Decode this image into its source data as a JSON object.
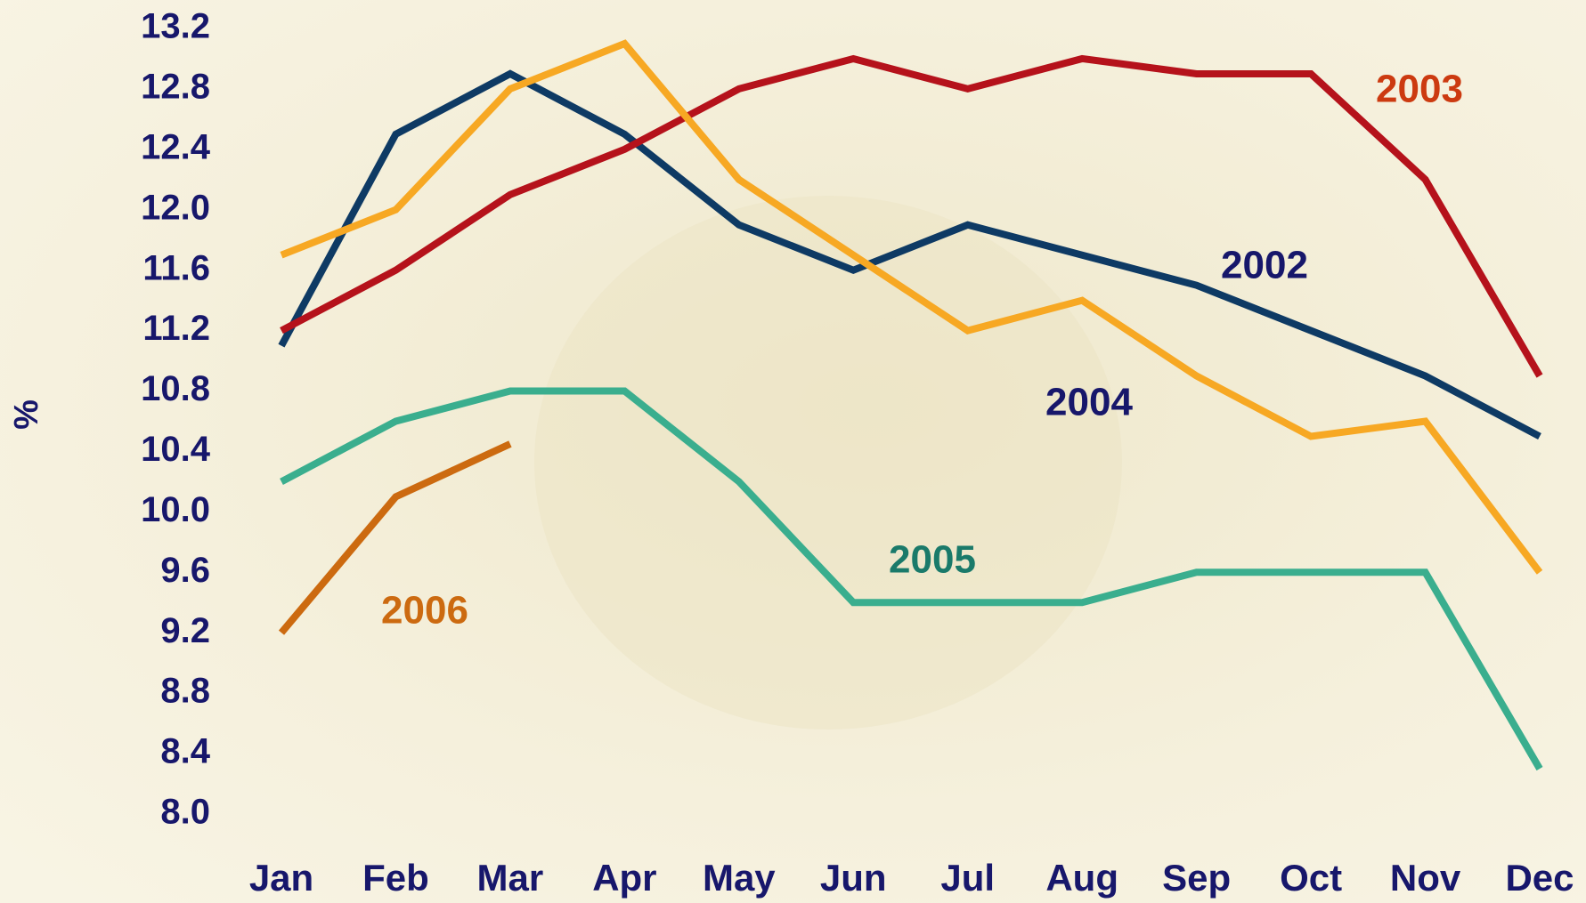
{
  "chart_data": {
    "type": "line",
    "y_label": "%",
    "categories": [
      "Jan",
      "Feb",
      "Mar",
      "Apr",
      "May",
      "Jun",
      "Jul",
      "Aug",
      "Sep",
      "Oct",
      "Nov",
      "Dec"
    ],
    "ylim": [
      8,
      13.2
    ],
    "yticks": [
      {
        "value": 8,
        "label": "8.0"
      },
      8.4,
      8.8,
      9.2,
      9.6,
      {
        "value": 10,
        "label": "10.0"
      },
      10.4,
      10.8,
      11.2,
      11.6,
      {
        "value": 12,
        "label": "12.0"
      },
      12.4,
      12.8,
      13.2
    ],
    "grid": false,
    "series": [
      {
        "name": "2002",
        "color": "#0e3a64",
        "label_color": "#17176b",
        "values": [
          11.1,
          12.5,
          12.9,
          12.5,
          11.9,
          11.6,
          11.9,
          11.7,
          11.5,
          11.2,
          10.9,
          10.5
        ]
      },
      {
        "name": "2003",
        "color": "#b5121b",
        "label_color": "#cc3a10",
        "values": [
          11.2,
          11.6,
          12.1,
          12.4,
          12.8,
          13.0,
          12.8,
          13.0,
          12.9,
          12.9,
          12.2,
          10.9
        ]
      },
      {
        "name": "2004",
        "color": "#f7a823",
        "label_color": "#17176b",
        "values": [
          11.7,
          12.0,
          12.8,
          13.1,
          12.2,
          11.7,
          11.2,
          11.4,
          10.9,
          10.5,
          10.6,
          9.6
        ]
      },
      {
        "name": "2005",
        "color": "#3aae8e",
        "label_color": "#1a7a6a",
        "values": [
          10.2,
          10.6,
          10.8,
          10.8,
          10.2,
          9.4,
          9.4,
          9.4,
          9.6,
          9.6,
          9.6,
          8.3
        ]
      },
      {
        "name": "2006",
        "color": "#cc6a10",
        "label_color": "#cc6a10",
        "values": [
          9.2,
          10.1,
          10.45,
          null,
          null,
          null,
          null,
          null,
          null,
          null,
          null,
          null
        ]
      }
    ]
  }
}
